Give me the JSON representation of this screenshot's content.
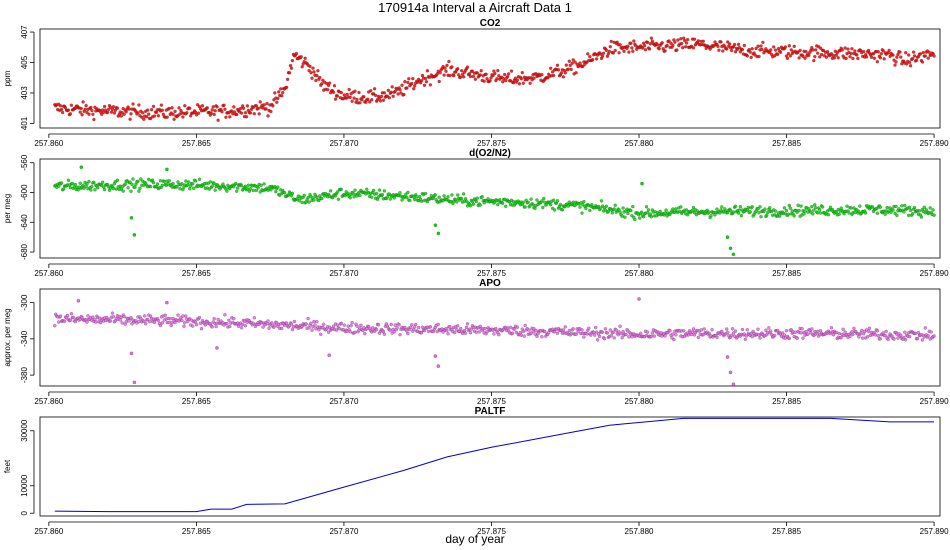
{
  "figure": {
    "title": "170914a   Interval a Aircraft Data 1",
    "xlabel": "day of year"
  },
  "chart_data": [
    {
      "type": "scatter",
      "title": "CO2",
      "ylabel": "ppm",
      "color": "#ff0000",
      "xlim": [
        257.8597,
        257.8902
      ],
      "ylim": [
        400.7,
        407.2
      ],
      "xticks": [
        257.86,
        257.865,
        257.87,
        257.875,
        257.88,
        257.885,
        257.89
      ],
      "xtick_labels": [
        "257.860",
        "257.865",
        "257.870",
        "257.875",
        "257.880",
        "257.885",
        "257.890"
      ],
      "yticks": [
        401,
        403,
        405,
        407
      ],
      "ytick_labels": [
        "401",
        "403",
        "405",
        "407"
      ],
      "trend": [
        [
          257.8602,
          402.0
        ],
        [
          257.862,
          401.8
        ],
        [
          257.864,
          401.7
        ],
        [
          257.866,
          401.8
        ],
        [
          257.8675,
          402.1
        ],
        [
          257.868,
          403.2
        ],
        [
          257.8683,
          405.5
        ],
        [
          257.8688,
          404.8
        ],
        [
          257.8693,
          403.5
        ],
        [
          257.87,
          402.8
        ],
        [
          257.871,
          402.7
        ],
        [
          257.8718,
          403.0
        ],
        [
          257.8725,
          403.8
        ],
        [
          257.8735,
          404.5
        ],
        [
          257.8745,
          404.2
        ],
        [
          257.8755,
          403.9
        ],
        [
          257.8765,
          404.0
        ],
        [
          257.8775,
          404.5
        ],
        [
          257.8782,
          405.0
        ],
        [
          257.879,
          405.9
        ],
        [
          257.88,
          406.0
        ],
        [
          257.882,
          406.2
        ],
        [
          257.8835,
          405.8
        ],
        [
          257.885,
          405.7
        ],
        [
          257.887,
          405.6
        ],
        [
          257.8885,
          405.5
        ],
        [
          257.889,
          405.1
        ],
        [
          257.89,
          405.6
        ]
      ],
      "spread": 0.45
    },
    {
      "type": "scatter",
      "title": "d(O2/N2)",
      "ylabel": "per meg",
      "color": "#00dd00",
      "xlim": [
        257.8597,
        257.8902
      ],
      "ylim": [
        -688,
        -555
      ],
      "xticks": [
        257.86,
        257.865,
        257.87,
        257.875,
        257.88,
        257.885,
        257.89
      ],
      "xtick_labels": [
        "257.860",
        "257.865",
        "257.870",
        "257.875",
        "257.880",
        "257.885",
        "257.890"
      ],
      "yticks": [
        -560,
        -600,
        -640,
        -680
      ],
      "ytick_labels": [
        "-560",
        "-600",
        "-640",
        "-680"
      ],
      "trend": [
        [
          257.8602,
          -592
        ],
        [
          257.862,
          -590
        ],
        [
          257.864,
          -589
        ],
        [
          257.866,
          -591
        ],
        [
          257.8675,
          -594
        ],
        [
          257.8685,
          -610
        ],
        [
          257.87,
          -601
        ],
        [
          257.872,
          -605
        ],
        [
          257.874,
          -611
        ],
        [
          257.876,
          -613
        ],
        [
          257.878,
          -618
        ],
        [
          257.88,
          -628
        ],
        [
          257.882,
          -626
        ],
        [
          257.884,
          -625
        ],
        [
          257.886,
          -624
        ],
        [
          257.888,
          -623
        ],
        [
          257.89,
          -625
        ]
      ],
      "spread": 7,
      "outliers": [
        [
          257.8628,
          -634
        ],
        [
          257.8629,
          -657
        ],
        [
          257.8731,
          -644
        ],
        [
          257.8732,
          -655
        ],
        [
          257.883,
          -660
        ],
        [
          257.8831,
          -675
        ],
        [
          257.8832,
          -683
        ],
        [
          257.8801,
          -588
        ],
        [
          257.8611,
          -566
        ],
        [
          257.864,
          -569
        ]
      ]
    },
    {
      "type": "scatter",
      "title": "APO",
      "ylabel": "approx. per meg",
      "color": "#ee66ee",
      "xlim": [
        257.8597,
        257.8902
      ],
      "ylim": [
        -392,
        -285
      ],
      "xticks": [
        257.86,
        257.865,
        257.87,
        257.875,
        257.88,
        257.885,
        257.89
      ],
      "xtick_labels": [
        "257.860",
        "257.865",
        "257.870",
        "257.875",
        "257.880",
        "257.885",
        "257.890"
      ],
      "yticks": [
        -300,
        -340,
        -380
      ],
      "ytick_labels": [
        "-300",
        "-340",
        "-380"
      ],
      "trend": [
        [
          257.8602,
          -318
        ],
        [
          257.862,
          -319
        ],
        [
          257.864,
          -320
        ],
        [
          257.866,
          -322
        ],
        [
          257.868,
          -325
        ],
        [
          257.87,
          -328
        ],
        [
          257.872,
          -329
        ],
        [
          257.874,
          -330
        ],
        [
          257.876,
          -331
        ],
        [
          257.878,
          -333
        ],
        [
          257.88,
          -335
        ],
        [
          257.882,
          -334
        ],
        [
          257.884,
          -334
        ],
        [
          257.886,
          -334
        ],
        [
          257.888,
          -335
        ],
        [
          257.89,
          -336
        ]
      ],
      "spread": 6,
      "outliers": [
        [
          257.8628,
          -356
        ],
        [
          257.8629,
          -388
        ],
        [
          257.8731,
          -359
        ],
        [
          257.8732,
          -370
        ],
        [
          257.883,
          -360
        ],
        [
          257.8831,
          -377
        ],
        [
          257.8832,
          -390
        ],
        [
          257.88,
          -296
        ],
        [
          257.861,
          -298
        ],
        [
          257.864,
          -300
        ],
        [
          257.8657,
          -350
        ],
        [
          257.8695,
          -358
        ]
      ]
    },
    {
      "type": "line",
      "title": "PALTF",
      "ylabel": "feet",
      "color": "#0000cc",
      "xlim": [
        257.8597,
        257.8902
      ],
      "ylim": [
        -1000,
        35000
      ],
      "xticks": [
        257.86,
        257.865,
        257.87,
        257.875,
        257.88,
        257.885,
        257.89
      ],
      "xtick_labels": [
        "257.860",
        "257.865",
        "257.870",
        "257.875",
        "257.880",
        "257.885",
        "257.890"
      ],
      "yticks": [
        0,
        10000,
        30000
      ],
      "ytick_labels": [
        "0",
        "10000",
        "30000"
      ],
      "points": [
        [
          257.8602,
          800
        ],
        [
          257.862,
          600
        ],
        [
          257.864,
          600
        ],
        [
          257.865,
          600
        ],
        [
          257.8655,
          1500
        ],
        [
          257.8662,
          1500
        ],
        [
          257.8667,
          3200
        ],
        [
          257.868,
          3400
        ],
        [
          257.87,
          9500
        ],
        [
          257.872,
          15500
        ],
        [
          257.8735,
          20500
        ],
        [
          257.875,
          24000
        ],
        [
          257.8775,
          29000
        ],
        [
          257.879,
          32000
        ],
        [
          257.8805,
          33500
        ],
        [
          257.8815,
          34500
        ],
        [
          257.8825,
          34500
        ],
        [
          257.884,
          34500
        ],
        [
          257.8865,
          34500
        ],
        [
          257.8885,
          33200
        ],
        [
          257.89,
          33200
        ]
      ]
    }
  ]
}
